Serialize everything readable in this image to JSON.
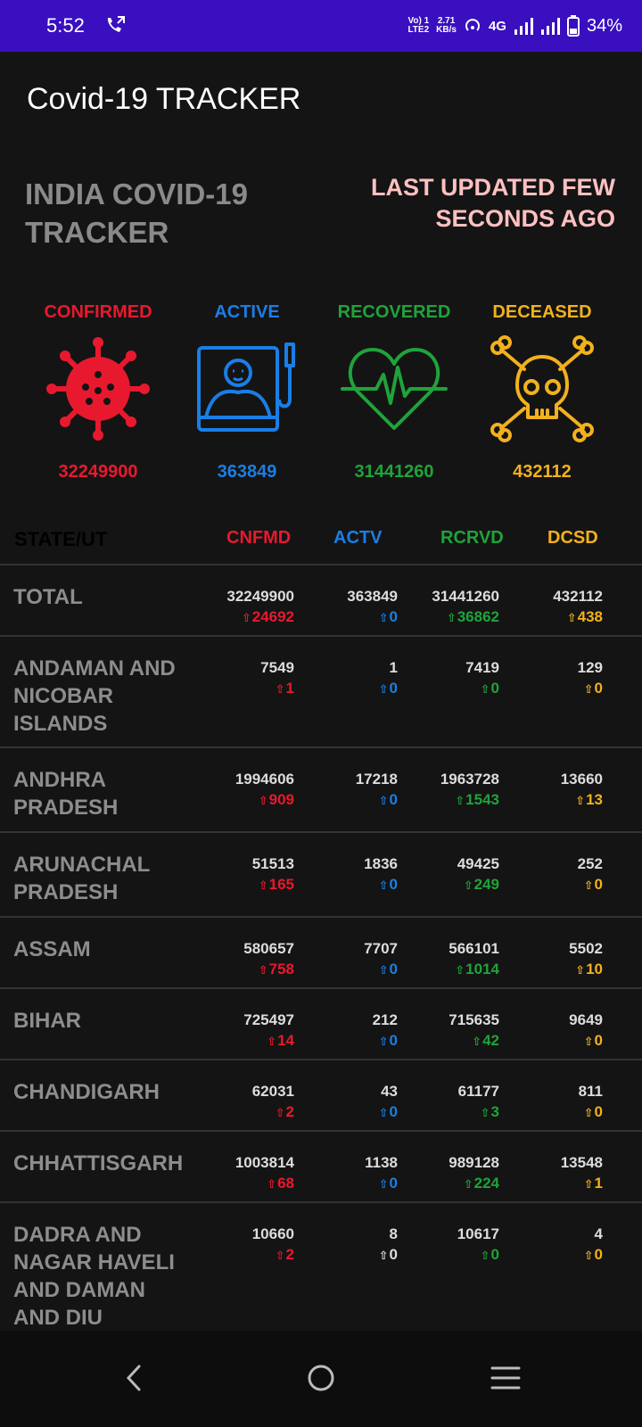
{
  "status": {
    "time": "5:52",
    "volte": "Vo) 1",
    "lte": "LTE2",
    "speed": "2.71",
    "speed_unit": "KB/s",
    "net": "4G",
    "battery": "34%"
  },
  "app": {
    "title": "Covid-19 TRACKER"
  },
  "headline": "INDIA COVID-19 TRACKER",
  "last_updated": "LAST UPDATED FEW SECONDS AGO",
  "colors": {
    "confirmed": "#e8192e",
    "active": "#1a7ee6",
    "recovered": "#1fa33a",
    "deceased": "#f2b11d"
  },
  "summary": {
    "confirmed": {
      "label": "CONFIRMED",
      "value": "32249900",
      "icon": "virus-icon"
    },
    "active": {
      "label": "ACTIVE",
      "value": "363849",
      "icon": "hospital-bed-icon"
    },
    "recovered": {
      "label": "RECOVERED",
      "value": "31441260",
      "icon": "heartbeat-icon"
    },
    "deceased": {
      "label": "DECEASED",
      "value": "432112",
      "icon": "skull-crossbones-icon"
    }
  },
  "table": {
    "headers": {
      "state": "STATE/UT",
      "confirmed": "CNFMD",
      "active": "ACTV",
      "recovered": "RCRVD",
      "deceased": "DCSD"
    },
    "rows": [
      {
        "state": "TOTAL",
        "c": "32249900",
        "cd": "24692",
        "a": "363849",
        "ad": "0",
        "r": "31441260",
        "rd": "36862",
        "d": "432112",
        "dd": "438"
      },
      {
        "state": "ANDAMAN AND NICOBAR ISLANDS",
        "c": "7549",
        "cd": "1",
        "a": "1",
        "ad": "0",
        "r": "7419",
        "rd": "0",
        "d": "129",
        "dd": "0"
      },
      {
        "state": "ANDHRA PRADESH",
        "c": "1994606",
        "cd": "909",
        "a": "17218",
        "ad": "0",
        "r": "1963728",
        "rd": "1543",
        "d": "13660",
        "dd": "13"
      },
      {
        "state": "ARUNACHAL PRADESH",
        "c": "51513",
        "cd": "165",
        "a": "1836",
        "ad": "0",
        "r": "49425",
        "rd": "249",
        "d": "252",
        "dd": "0"
      },
      {
        "state": "ASSAM",
        "c": "580657",
        "cd": "758",
        "a": "7707",
        "ad": "0",
        "r": "566101",
        "rd": "1014",
        "d": "5502",
        "dd": "10"
      },
      {
        "state": "BIHAR",
        "c": "725497",
        "cd": "14",
        "a": "212",
        "ad": "0",
        "r": "715635",
        "rd": "42",
        "d": "9649",
        "dd": "0"
      },
      {
        "state": "CHANDIGARH",
        "c": "62031",
        "cd": "2",
        "a": "43",
        "ad": "0",
        "r": "61177",
        "rd": "3",
        "d": "811",
        "dd": "0"
      },
      {
        "state": "CHHATTISGARH",
        "c": "1003814",
        "cd": "68",
        "a": "1138",
        "ad": "0",
        "r": "989128",
        "rd": "224",
        "d": "13548",
        "dd": "1"
      },
      {
        "state": "DADRA AND NAGAR HAVELI AND DAMAN AND DIU",
        "c": "10660",
        "cd": "2",
        "a": "8",
        "ad": "0",
        "r": "10617",
        "rd": "0",
        "d": "4",
        "dd": "0"
      }
    ]
  },
  "nav": {
    "back": "back-icon",
    "home": "home-icon",
    "recents": "recents-icon"
  }
}
